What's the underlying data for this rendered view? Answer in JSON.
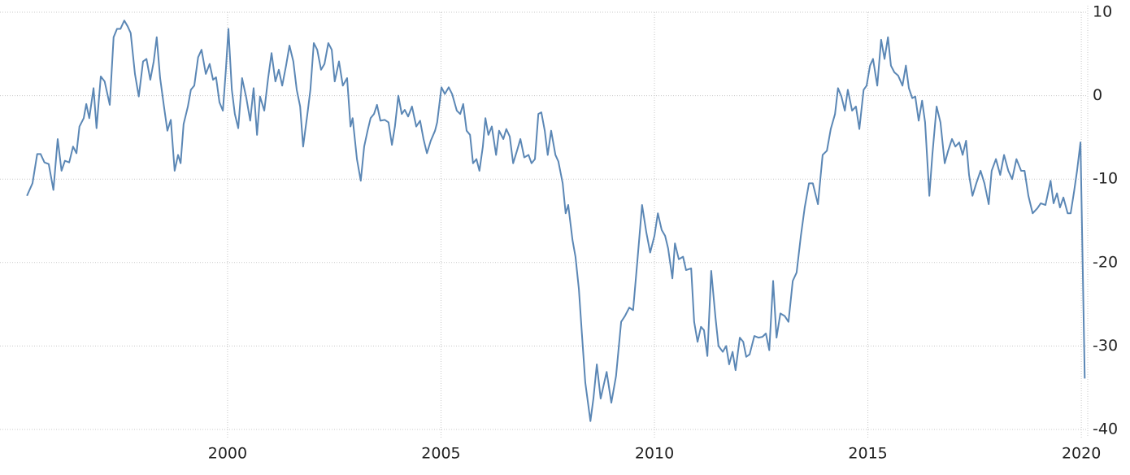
{
  "chart_data": {
    "type": "line",
    "color": "#5b87b5",
    "grid": true,
    "ylim": [
      -40,
      10
    ],
    "yticks": [
      -40,
      -30,
      -20,
      -10,
      0,
      10
    ],
    "xlim": [
      1995.24,
      2020.15
    ],
    "xticks": [
      2000,
      2005,
      2010,
      2015,
      2020
    ],
    "x": [
      1995.3,
      1995.43,
      1995.54,
      1995.62,
      1995.71,
      1995.81,
      1995.92,
      1996.02,
      1996.11,
      1996.19,
      1996.29,
      1996.38,
      1996.46,
      1996.53,
      1996.63,
      1996.69,
      1996.76,
      1996.86,
      1996.93,
      1997.03,
      1997.12,
      1997.24,
      1997.33,
      1997.41,
      1997.49,
      1997.58,
      1997.66,
      1997.73,
      1997.83,
      1997.92,
      1998.02,
      1998.1,
      1998.19,
      1998.27,
      1998.34,
      1998.42,
      1998.51,
      1998.59,
      1998.67,
      1998.76,
      1998.84,
      1998.9,
      1998.97,
      1999.07,
      1999.14,
      1999.22,
      1999.31,
      1999.39,
      1999.49,
      1999.58,
      1999.66,
      1999.73,
      1999.81,
      1999.89,
      1999.96,
      2000.02,
      2000.1,
      2000.17,
      2000.25,
      2000.34,
      2000.44,
      2000.53,
      2000.61,
      2000.69,
      2000.76,
      2000.86,
      2000.95,
      2001.03,
      2001.12,
      2001.2,
      2001.28,
      2001.37,
      2001.45,
      2001.54,
      2001.62,
      2001.7,
      2001.77,
      2001.87,
      2001.94,
      2002.02,
      2002.1,
      2002.19,
      2002.27,
      2002.36,
      2002.44,
      2002.51,
      2002.61,
      2002.7,
      2002.8,
      2002.88,
      2002.93,
      2003.03,
      2003.12,
      2003.2,
      2003.28,
      2003.35,
      2003.43,
      2003.5,
      2003.58,
      2003.68,
      2003.77,
      2003.85,
      2003.92,
      2004.0,
      2004.08,
      2004.15,
      2004.23,
      2004.32,
      2004.42,
      2004.51,
      2004.59,
      2004.67,
      2004.76,
      2004.86,
      2004.91,
      2005.01,
      2005.09,
      2005.18,
      2005.26,
      2005.37,
      2005.45,
      2005.52,
      2005.6,
      2005.68,
      2005.75,
      2005.83,
      2005.9,
      2005.98,
      2006.04,
      2006.11,
      2006.19,
      2006.29,
      2006.36,
      2006.46,
      2006.53,
      2006.61,
      2006.69,
      2006.78,
      2006.86,
      2006.95,
      2007.05,
      2007.12,
      2007.2,
      2007.28,
      2007.35,
      2007.43,
      2007.5,
      2007.58,
      2007.68,
      2007.75,
      2007.85,
      2007.92,
      2007.98,
      2008.08,
      2008.15,
      2008.23,
      2008.3,
      2008.38,
      2008.5,
      2008.57,
      2008.65,
      2008.74,
      2008.88,
      2008.99,
      2009.1,
      2009.22,
      2009.31,
      2009.41,
      2009.5,
      2009.6,
      2009.71,
      2009.81,
      2009.9,
      2010.0,
      2010.08,
      2010.17,
      2010.25,
      2010.32,
      2010.42,
      2010.48,
      2010.57,
      2010.67,
      2010.74,
      2010.86,
      2010.93,
      2011.01,
      2011.09,
      2011.16,
      2011.24,
      2011.33,
      2011.43,
      2011.5,
      2011.6,
      2011.68,
      2011.75,
      2011.83,
      2011.9,
      2012.0,
      2012.08,
      2012.15,
      2012.23,
      2012.34,
      2012.44,
      2012.53,
      2012.61,
      2012.69,
      2012.78,
      2012.86,
      2012.95,
      2013.05,
      2013.14,
      2013.24,
      2013.33,
      2013.43,
      2013.52,
      2013.62,
      2013.71,
      2013.83,
      2013.94,
      2014.04,
      2014.13,
      2014.23,
      2014.3,
      2014.38,
      2014.46,
      2014.53,
      2014.63,
      2014.72,
      2014.8,
      2014.9,
      2014.97,
      2015.05,
      2015.12,
      2015.22,
      2015.31,
      2015.39,
      2015.47,
      2015.54,
      2015.62,
      2015.71,
      2015.81,
      2015.89,
      2015.96,
      2016.04,
      2016.11,
      2016.19,
      2016.27,
      2016.34,
      2016.44,
      2016.51,
      2016.61,
      2016.7,
      2016.8,
      2016.88,
      2016.97,
      2017.05,
      2017.14,
      2017.22,
      2017.3,
      2017.37,
      2017.45,
      2017.54,
      2017.64,
      2017.73,
      2017.83,
      2017.9,
      2018.0,
      2018.1,
      2018.19,
      2018.29,
      2018.38,
      2018.48,
      2018.59,
      2018.67,
      2018.76,
      2018.86,
      2018.97,
      2019.05,
      2019.16,
      2019.28,
      2019.35,
      2019.43,
      2019.5,
      2019.58,
      2019.68,
      2019.75,
      2019.83,
      2019.9,
      2019.98,
      2020.08
    ],
    "values": [
      -12,
      -10.5,
      -7,
      -7,
      -8,
      -8.2,
      -11.3,
      -5.2,
      -9,
      -7.8,
      -8,
      -6.1,
      -6.9,
      -3.7,
      -2.7,
      -1,
      -2.7,
      0.9,
      -3.9,
      2.3,
      1.7,
      -1.1,
      7,
      8,
      8,
      9,
      8.3,
      7.5,
      2.6,
      -0.1,
      4.1,
      4.4,
      1.9,
      4.1,
      7,
      2.1,
      -1.3,
      -4.2,
      -2.9,
      -9,
      -7.1,
      -8.1,
      -3.4,
      -1.3,
      0.7,
      1.2,
      4.6,
      5.5,
      2.6,
      3.8,
      1.9,
      2.2,
      -0.8,
      -1.8,
      3.1,
      8,
      0.7,
      -2.2,
      -3.9,
      2.1,
      -0.3,
      -3,
      0.9,
      -4.7,
      -0.1,
      -1.8,
      2.1,
      5.1,
      1.7,
      3.1,
      1.2,
      3.6,
      6,
      4.1,
      0.7,
      -1.3,
      -6.1,
      -2.2,
      0.7,
      6.3,
      5.5,
      3.1,
      3.8,
      6.3,
      5.5,
      1.7,
      4.1,
      1.2,
      2.1,
      -3.7,
      -2.7,
      -7.6,
      -10.2,
      -6.1,
      -4.2,
      -2.7,
      -2.2,
      -1.1,
      -3,
      -2.9,
      -3.2,
      -5.9,
      -3.7,
      0,
      -2.2,
      -1.7,
      -2.5,
      -1.3,
      -3.7,
      -3,
      -5.2,
      -6.9,
      -5.4,
      -4.2,
      -3.2,
      1,
      0.2,
      1,
      0.2,
      -1.8,
      -2.2,
      -1,
      -4.2,
      -4.7,
      -8.1,
      -7.6,
      -9,
      -6.1,
      -2.7,
      -4.7,
      -3.7,
      -7.1,
      -4.2,
      -5.2,
      -4,
      -4.9,
      -8.1,
      -6.6,
      -5.2,
      -7.4,
      -7.1,
      -8.1,
      -7.6,
      -2.2,
      -2,
      -4.2,
      -7.1,
      -4.2,
      -7.1,
      -7.9,
      -10.5,
      -14.1,
      -13.1,
      -17.3,
      -19.3,
      -23.2,
      -28.5,
      -34.4,
      -39,
      -36.3,
      -32.2,
      -36.3,
      -33.1,
      -36.8,
      -33.6,
      -27.1,
      -26.4,
      -25.4,
      -25.7,
      -19.8,
      -13.1,
      -16.4,
      -18.8,
      -16.8,
      -14.1,
      -16.1,
      -16.8,
      -18.3,
      -21.9,
      -17.7,
      -19.6,
      -19.3,
      -20.9,
      -20.7,
      -27.1,
      -29.5,
      -27.7,
      -28.1,
      -31.2,
      -21,
      -26.6,
      -30,
      -30.7,
      -30,
      -32.2,
      -30.7,
      -32.9,
      -29,
      -29.5,
      -31.3,
      -31,
      -28.8,
      -29,
      -28.9,
      -28.5,
      -30.5,
      -22.2,
      -29,
      -26.1,
      -26.4,
      -27.1,
      -22.2,
      -21.2,
      -16.8,
      -13.4,
      -10.5,
      -10.5,
      -13,
      -7.1,
      -6.6,
      -4,
      -2.2,
      0.9,
      -0.1,
      -1.8,
      0.7,
      -1.8,
      -1.3,
      -4,
      0.7,
      1.2,
      3.6,
      4.4,
      1.2,
      6.7,
      4.4,
      7,
      3.6,
      2.8,
      2.4,
      1.2,
      3.6,
      0.9,
      -0.3,
      -0.1,
      -3,
      -0.6,
      -3.2,
      -12,
      -7.1,
      -1.3,
      -3.2,
      -8.1,
      -6.6,
      -5.2,
      -6.1,
      -5.6,
      -7.1,
      -5.4,
      -9.5,
      -12,
      -10.5,
      -9,
      -10.5,
      -13,
      -9,
      -7.6,
      -9.5,
      -7.1,
      -9,
      -10,
      -7.6,
      -9,
      -9,
      -12,
      -14.1,
      -13.5,
      -12.9,
      -13.1,
      -10.2,
      -12.9,
      -11.7,
      -13.4,
      -12.2,
      -14.1,
      -14.1,
      -11.5,
      -9,
      -5.6,
      -33.9
    ]
  }
}
